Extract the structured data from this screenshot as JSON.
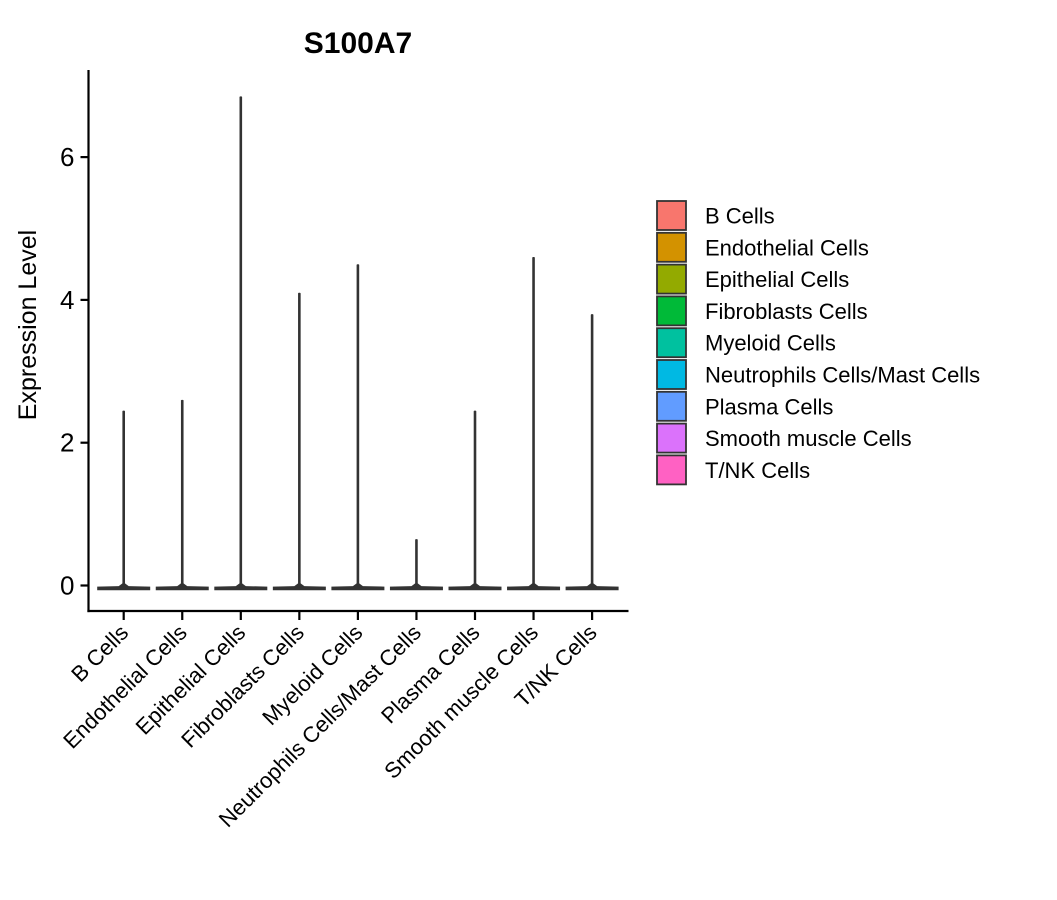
{
  "figure": {
    "background": "#ffffff"
  },
  "chart_data": {
    "type": "violin",
    "title": "S100A7",
    "ylabel": "Expression Level",
    "xlabel": "",
    "ylim": [
      0,
      7.2
    ],
    "yticks": [
      0,
      2,
      4,
      6
    ],
    "grid": false,
    "legend_position": "right",
    "axis_color": "#000000",
    "violin_color": "#333333",
    "distribution_note": "All violins have density mass concentrated at expression 0 (wide flat base) with a thin upper tail spike reaching max_expression",
    "categories": [
      "B Cells",
      "Endothelial Cells",
      "Epithelial Cells",
      "Fibroblasts Cells",
      "Myeloid Cells",
      "Neutrophils Cells/Mast Cells",
      "Plasma Cells",
      "Smooth muscle Cells",
      "T/NK Cells"
    ],
    "series": [
      {
        "name": "B Cells",
        "color": "#F8766D",
        "min_expression": 0,
        "max_expression": 2.45
      },
      {
        "name": "Endothelial Cells",
        "color": "#D39200",
        "min_expression": 0,
        "max_expression": 2.6
      },
      {
        "name": "Epithelial Cells",
        "color": "#93AA00",
        "min_expression": 0,
        "max_expression": 6.85
      },
      {
        "name": "Fibroblasts Cells",
        "color": "#00BA38",
        "min_expression": 0,
        "max_expression": 4.1
      },
      {
        "name": "Myeloid Cells",
        "color": "#00C19F",
        "min_expression": 0,
        "max_expression": 4.5
      },
      {
        "name": "Neutrophils Cells/Mast Cells",
        "color": "#00B9E3",
        "min_expression": 0,
        "max_expression": 0.65
      },
      {
        "name": "Plasma Cells",
        "color": "#619CFF",
        "min_expression": 0,
        "max_expression": 2.45
      },
      {
        "name": "Smooth muscle Cells",
        "color": "#DB72FB",
        "min_expression": 0,
        "max_expression": 4.6
      },
      {
        "name": "T/NK Cells",
        "color": "#FF61C3",
        "min_expression": 0,
        "max_expression": 3.8
      }
    ],
    "legend": {
      "entries": [
        "B Cells",
        "Endothelial Cells",
        "Epithelial Cells",
        "Fibroblasts Cells",
        "Myeloid Cells",
        "Neutrophils Cells/Mast Cells",
        "Plasma Cells",
        "Smooth muscle Cells",
        "T/NK Cells"
      ]
    }
  }
}
